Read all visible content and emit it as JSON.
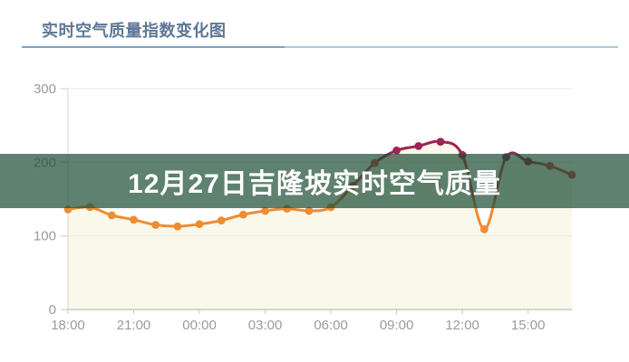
{
  "header": {
    "title": "实时空气质量指数变化图"
  },
  "banner": {
    "text": "12月27日吉隆坡实时空气质量",
    "background": "#1a4c33",
    "opacity": 0.7,
    "text_color": "#ffffff"
  },
  "chart_data": {
    "type": "line",
    "title": "实时空气质量指数变化图",
    "x": [
      "18:00",
      "19:00",
      "20:00",
      "21:00",
      "22:00",
      "23:00",
      "00:00",
      "01:00",
      "02:00",
      "03:00",
      "04:00",
      "05:00",
      "06:00",
      "07:00",
      "08:00",
      "09:00",
      "10:00",
      "11:00",
      "12:00",
      "13:00",
      "14:00",
      "15:00",
      "16:00",
      "17:00"
    ],
    "values": [
      136,
      139,
      128,
      122,
      115,
      113,
      116,
      121,
      129,
      134,
      137,
      134,
      139,
      168,
      199,
      216,
      222,
      228,
      210,
      109,
      207,
      201,
      195,
      183
    ],
    "x_tick_labels": [
      "18:00",
      "21:00",
      "00:00",
      "03:00",
      "06:00",
      "09:00",
      "12:00",
      "15:00"
    ],
    "x_tick_every": 3,
    "y_ticks": [
      0,
      100,
      200,
      300
    ],
    "ylim": [
      0,
      300
    ],
    "xlabel": "",
    "ylabel": "",
    "grid": true,
    "legend": "none",
    "smooth": true,
    "area": true,
    "thresholds": {
      "orange_max": 150,
      "red_max": 200
    },
    "colors": {
      "aqi_orange": "#ee8c34",
      "aqi_red": "#d5453c",
      "aqi_purple": "#9e2455",
      "area_fill": "#f9f8ea",
      "gridline": "#e7e7e2",
      "axis_line": "#c8c8c3",
      "axis_text": "#9b9b98"
    }
  },
  "title_underline": {
    "accent_color": "#7aa3c5",
    "light_color": "#adc8dc"
  }
}
